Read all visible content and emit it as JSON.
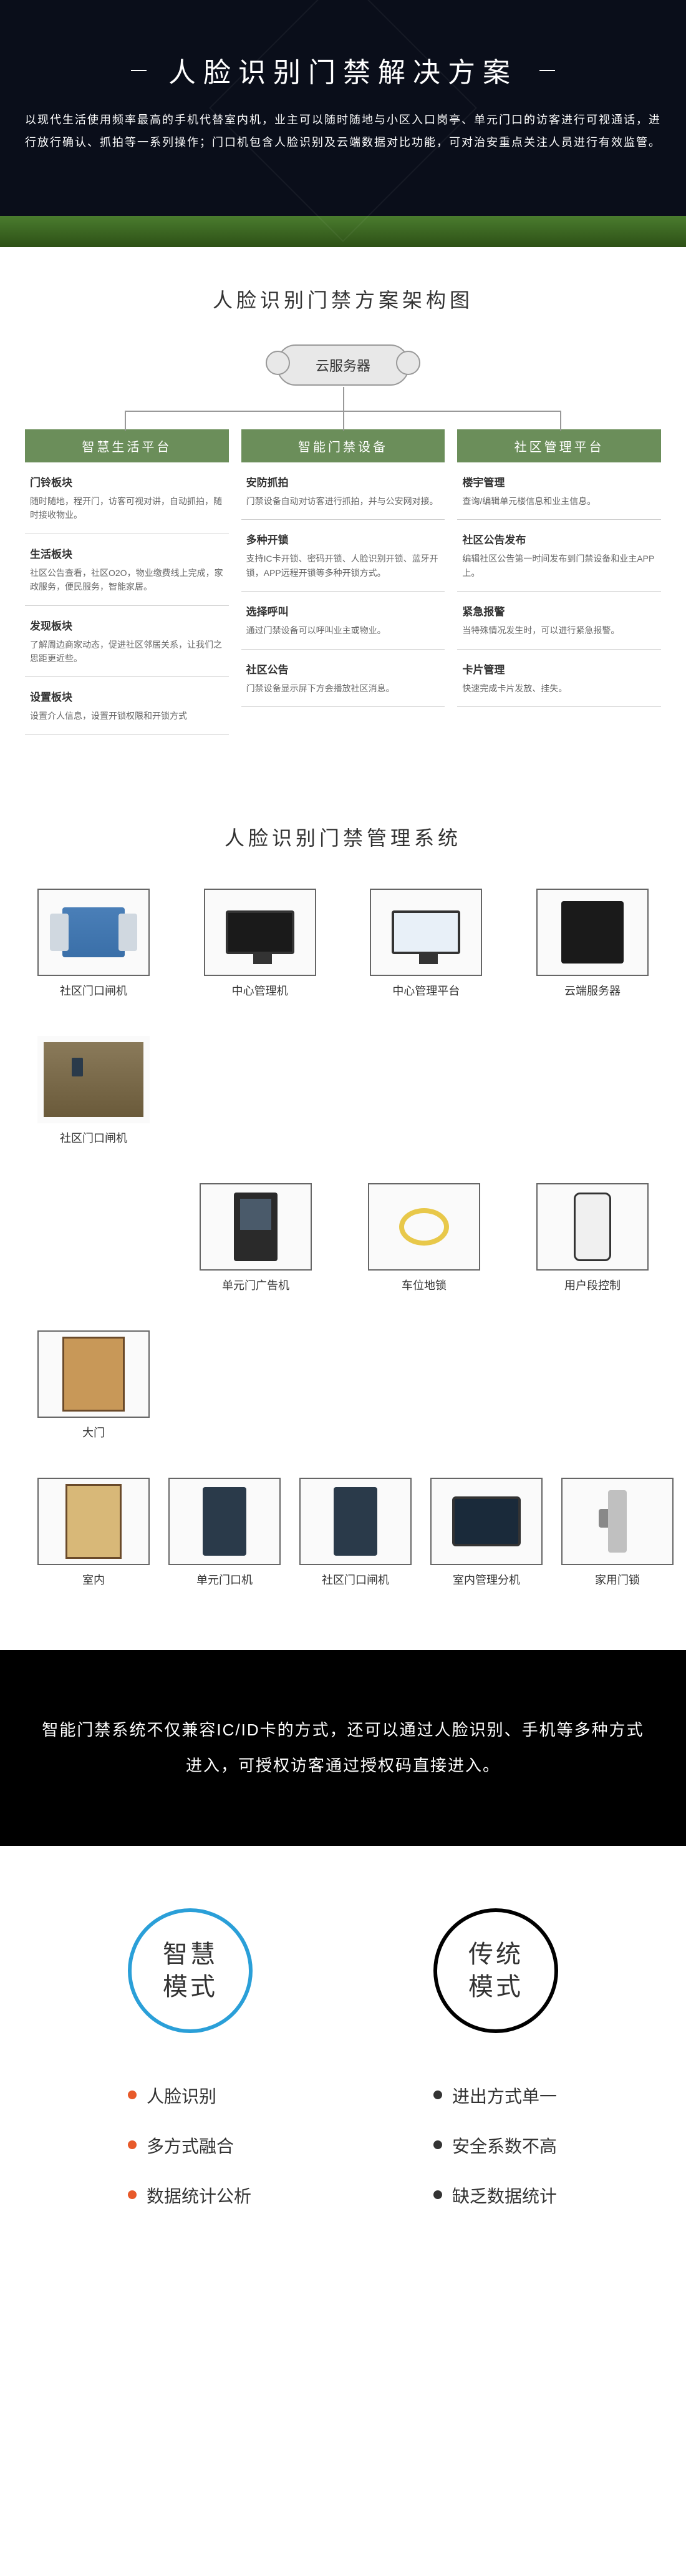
{
  "hero": {
    "title": "人脸识别门禁解决方案",
    "desc": "以现代生活使用频率最高的手机代替室内机，业主可以随时随地与小区入口岗亭、单元门口的访客进行可视通话，进行放行确认、抓拍等一系列操作；门口机包含人脸识别及云端数据对比功能，可对治安重点关注人员进行有效监管。"
  },
  "arch": {
    "title": "人脸识别门禁方案架构图",
    "cloud": "云服务器",
    "columns": [
      {
        "head": "智慧生活平台",
        "items": [
          {
            "h": "门铃板块",
            "p": "随时随地，程开门，访客可视对讲，自动抓拍，随时接收物业。"
          },
          {
            "h": "生活板块",
            "p": "社区公告查看，社区O2O，物业缴费线上完成，家政服务，便民服务，智能家居。"
          },
          {
            "h": "发现板块",
            "p": "了解周边商家动态，促进社区邻居关系，让我们之思距更近些。"
          },
          {
            "h": "设置板块",
            "p": "设置介人信息，设置开锁权限和开锁方式"
          }
        ]
      },
      {
        "head": "智能门禁设备",
        "items": [
          {
            "h": "安防抓拍",
            "p": "门禁设备自动对访客进行抓拍，并与公安网对接。"
          },
          {
            "h": "多种开锁",
            "p": "支持IC卡开锁、密码开锁、人脸识别开锁、蓝牙开锁，APP远程开锁等多种开锁方式。"
          },
          {
            "h": "选择呼叫",
            "p": "通过门禁设备可以呼叫业主或物业。"
          },
          {
            "h": "社区公告",
            "p": "门禁设备显示屏下方会播放社区消息。"
          }
        ]
      },
      {
        "head": "社区管理平台",
        "items": [
          {
            "h": "楼宇管理",
            "p": "查询/编辑单元楼信息和业主信息。"
          },
          {
            "h": "社区公告发布",
            "p": "编辑社区公告第一时间发布到门禁设备和业主APP上。"
          },
          {
            "h": "紧急报警",
            "p": "当特殊情况发生时，可以进行紧急报警。"
          },
          {
            "h": "卡片管理",
            "p": "快速完成卡片发放、挂失。"
          }
        ]
      }
    ]
  },
  "sys": {
    "title": "人脸识别门禁管理系统",
    "nodes": {
      "n1": "社区门口闸机",
      "n2": "中心管理机",
      "n3": "中心管理平台",
      "n4": "云端服务器",
      "n5": "社区门口闸机",
      "n6": "单元门广告机",
      "n7": "车位地锁",
      "n8": "用户段控制",
      "n9": "大门",
      "n10": "室内",
      "n11": "单元门口机",
      "n12": "社区门口闸机",
      "n13": "室内管理分机",
      "n14": "家用门锁"
    }
  },
  "banner": "智能门禁系统不仅兼容IC/ID卡的方式，还可以通过人脸识别、手机等多种方式进入，可授权访客通过授权码直接进入。",
  "compare": {
    "left": {
      "title": "智慧\n模式",
      "items": [
        "人脸识别",
        "多方式融合",
        "数据统计公析"
      ]
    },
    "right": {
      "title": "传统\n模式",
      "items": [
        "进出方式单一",
        "安全系数不高",
        "缺乏数据统计"
      ]
    }
  },
  "colors": {
    "green_head": "#6b8e5a",
    "blue_ring": "#2a9fd8",
    "orange_dot": "#e85a2a"
  }
}
